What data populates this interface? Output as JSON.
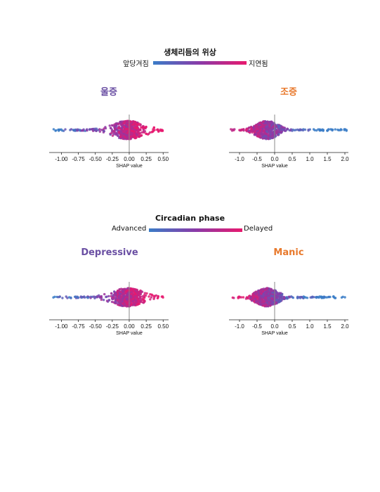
{
  "figures": [
    {
      "legend": {
        "title": "생체리듬의 위상",
        "left_label": "앞당겨짐",
        "right_label": "지연됨"
      },
      "panels": [
        {
          "title": "울증",
          "title_color": "#6a4fa3"
        },
        {
          "title": "조증",
          "title_color": "#e8792c"
        }
      ]
    },
    {
      "legend": {
        "title": "Circadian phase",
        "left_label": "Advanced",
        "right_label": "Delayed"
      },
      "panels": [
        {
          "title": "Depressive",
          "title_color": "#6a4fa3"
        },
        {
          "title": "Manic",
          "title_color": "#e8792c"
        }
      ]
    }
  ],
  "colors": {
    "low": "#3a7cc7",
    "mid": "#8a3aa8",
    "high": "#e8196e"
  },
  "chart_data": [
    {
      "type": "scatter",
      "subtype": "shap-beeswarm",
      "title": "울증",
      "xlabel": "SHAP value",
      "xlim": [
        -1.18,
        0.58
      ],
      "xticks": [
        -1.0,
        -0.75,
        -0.5,
        -0.25,
        0.0,
        0.25,
        0.5
      ],
      "xtick_labels": [
        "-1.00",
        "-0.75",
        "-0.50",
        "-0.25",
        "0.00",
        "0.25",
        "0.50"
      ],
      "range": [
        -1.12,
        0.5
      ],
      "peak": -0.02,
      "color_by": "생체리듬의 위상"
    },
    {
      "type": "scatter",
      "subtype": "shap-beeswarm",
      "title": "조증",
      "xlabel": "SHAP value",
      "xlim": [
        -1.3,
        2.1
      ],
      "xticks": [
        -1.0,
        -0.5,
        0.0,
        0.5,
        1.0,
        1.5,
        2.0
      ],
      "xtick_labels": [
        "-1.0",
        "-0.5",
        "0.0",
        "0.5",
        "1.0",
        "1.5",
        "2.0"
      ],
      "range": [
        -1.25,
        2.05
      ],
      "peak": -0.22,
      "color_by": "생체리듬의 위상"
    },
    {
      "type": "scatter",
      "subtype": "shap-beeswarm",
      "title": "Depressive",
      "xlabel": "SHAP value",
      "xlim": [
        -1.18,
        0.58
      ],
      "xticks": [
        -1.0,
        -0.75,
        -0.5,
        -0.25,
        0.0,
        0.25,
        0.5
      ],
      "xtick_labels": [
        "-1.00",
        "-0.75",
        "-0.50",
        "-0.25",
        "0.00",
        "0.25",
        "0.50"
      ],
      "range": [
        -1.12,
        0.5
      ],
      "peak": -0.02,
      "color_by": "Circadian phase"
    },
    {
      "type": "scatter",
      "subtype": "shap-beeswarm",
      "title": "Manic",
      "xlabel": "SHAP value",
      "xlim": [
        -1.3,
        2.1
      ],
      "xticks": [
        -1.0,
        -0.5,
        0.0,
        0.5,
        1.0,
        1.5,
        2.0
      ],
      "xtick_labels": [
        "-1.0",
        "-0.5",
        "0.0",
        "0.5",
        "1.0",
        "1.5",
        "2.0"
      ],
      "range": [
        -1.25,
        2.05
      ],
      "peak": -0.22,
      "color_by": "Circadian phase"
    }
  ]
}
